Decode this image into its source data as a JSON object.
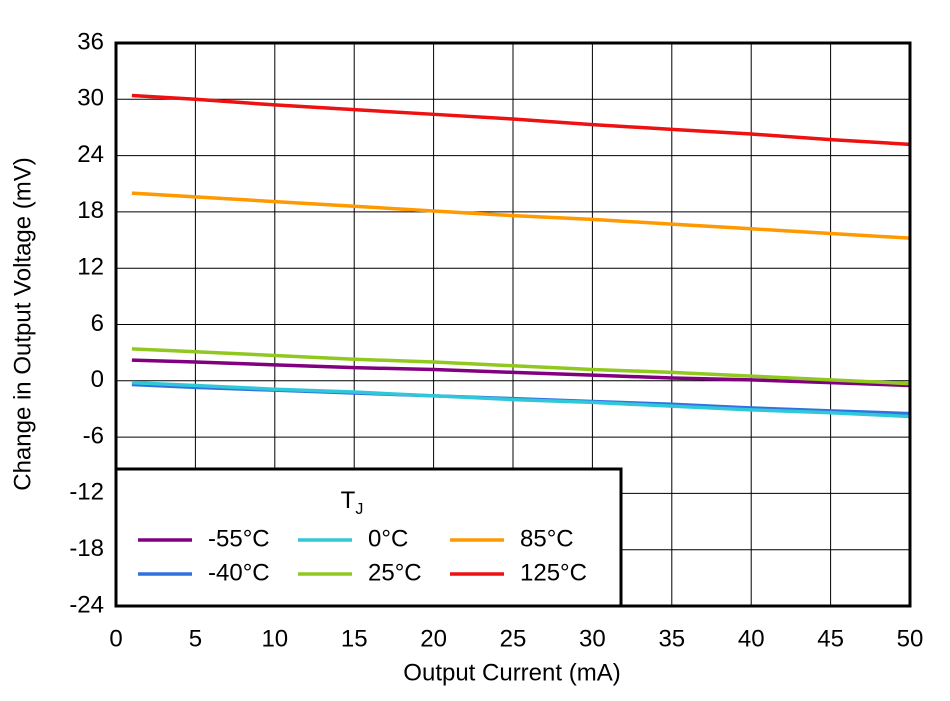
{
  "chart_data": {
    "type": "line",
    "x_label": "Output Current (mA)",
    "y_label": "Change in Output Voltage (mV)",
    "x": [
      1,
      5,
      10,
      15,
      20,
      25,
      30,
      35,
      40,
      45,
      50
    ],
    "xlim": [
      0,
      50
    ],
    "xticks": [
      0,
      5,
      10,
      15,
      20,
      25,
      30,
      35,
      40,
      45,
      50
    ],
    "ylim": [
      -24,
      36
    ],
    "yticks": [
      -24,
      -18,
      -12,
      -6,
      0,
      6,
      12,
      18,
      24,
      30,
      36
    ],
    "grid": true,
    "legend_title": "T",
    "legend_title_sub": "J",
    "series": [
      {
        "name": "-55°C",
        "color": "#800080",
        "values": [
          2.2,
          2.0,
          1.7,
          1.4,
          1.2,
          0.9,
          0.6,
          0.3,
          0.1,
          -0.2,
          -0.5
        ]
      },
      {
        "name": "-40°C",
        "color": "#3070e0",
        "values": [
          -0.4,
          -0.7,
          -1.0,
          -1.3,
          -1.6,
          -1.9,
          -2.2,
          -2.5,
          -2.9,
          -3.2,
          -3.5
        ]
      },
      {
        "name": "0°C",
        "color": "#30c8d8",
        "values": [
          -0.2,
          -0.5,
          -0.9,
          -1.2,
          -1.6,
          -2.0,
          -2.3,
          -2.7,
          -3.1,
          -3.4,
          -3.8
        ]
      },
      {
        "name": "25°C",
        "color": "#90c820",
        "values": [
          3.4,
          3.1,
          2.7,
          2.3,
          2.0,
          1.6,
          1.2,
          0.9,
          0.5,
          0.1,
          -0.3
        ]
      },
      {
        "name": "85°C",
        "color": "#ff9900",
        "values": [
          20.0,
          19.6,
          19.1,
          18.6,
          18.1,
          17.6,
          17.2,
          16.7,
          16.2,
          15.7,
          15.2
        ]
      },
      {
        "name": "125°C",
        "color": "#ee1111",
        "values": [
          30.4,
          30.0,
          29.4,
          28.9,
          28.4,
          27.9,
          27.3,
          26.8,
          26.3,
          25.7,
          25.2
        ]
      }
    ]
  }
}
